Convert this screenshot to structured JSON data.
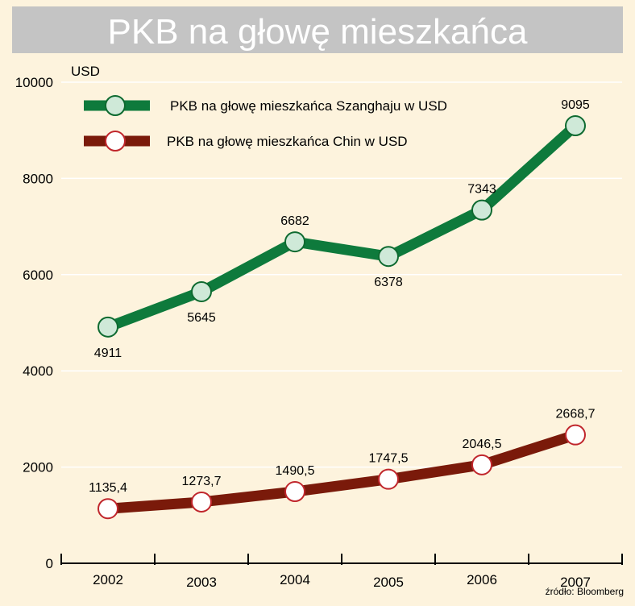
{
  "chart_data": {
    "type": "line",
    "title": "PKB na głowę mieszkańca",
    "ylabel": "USD",
    "source": "źródło: Bloomberg",
    "categories": [
      "2002",
      "2003",
      "2004",
      "2005",
      "2006",
      "2007"
    ],
    "yticks": [
      "0",
      "2000",
      "4000",
      "6000",
      "8000",
      "10000"
    ],
    "ylim": [
      0,
      10000
    ],
    "grid": true,
    "legend_position": "top-left",
    "series": [
      {
        "name": "PKB na głowę mieszkańca Szanghaju w USD",
        "values": [
          4911,
          5645,
          6682,
          6378,
          7343,
          9095
        ],
        "labels": [
          "4911",
          "5645",
          "6682",
          "6378",
          "7343",
          "9095"
        ],
        "label_sides": [
          "below",
          "below",
          "above",
          "below",
          "above",
          "above"
        ],
        "line_color": "#0e7a3c",
        "marker_fill": "#cfe9d8",
        "marker_stroke": "#0e6a30"
      },
      {
        "name": "PKB na głowę mieszkańca Chin w USD",
        "values": [
          1135.4,
          1273.7,
          1490.5,
          1747.5,
          2046.5,
          2668.7
        ],
        "labels": [
          "1135,4",
          "1273,7",
          "1490,5",
          "1747,5",
          "2046,5",
          "2668,7"
        ],
        "label_sides": [
          "above",
          "above",
          "above",
          "above",
          "above",
          "above"
        ],
        "line_color": "#7a1a0a",
        "marker_fill": "#ffffff",
        "marker_stroke": "#c0262c"
      }
    ],
    "colors": {
      "background": "#fdf3dd",
      "title_bar": "#c4c4c4",
      "title_text": "#ffffff",
      "gridline": "#ffffff",
      "axis": "#000000"
    }
  }
}
